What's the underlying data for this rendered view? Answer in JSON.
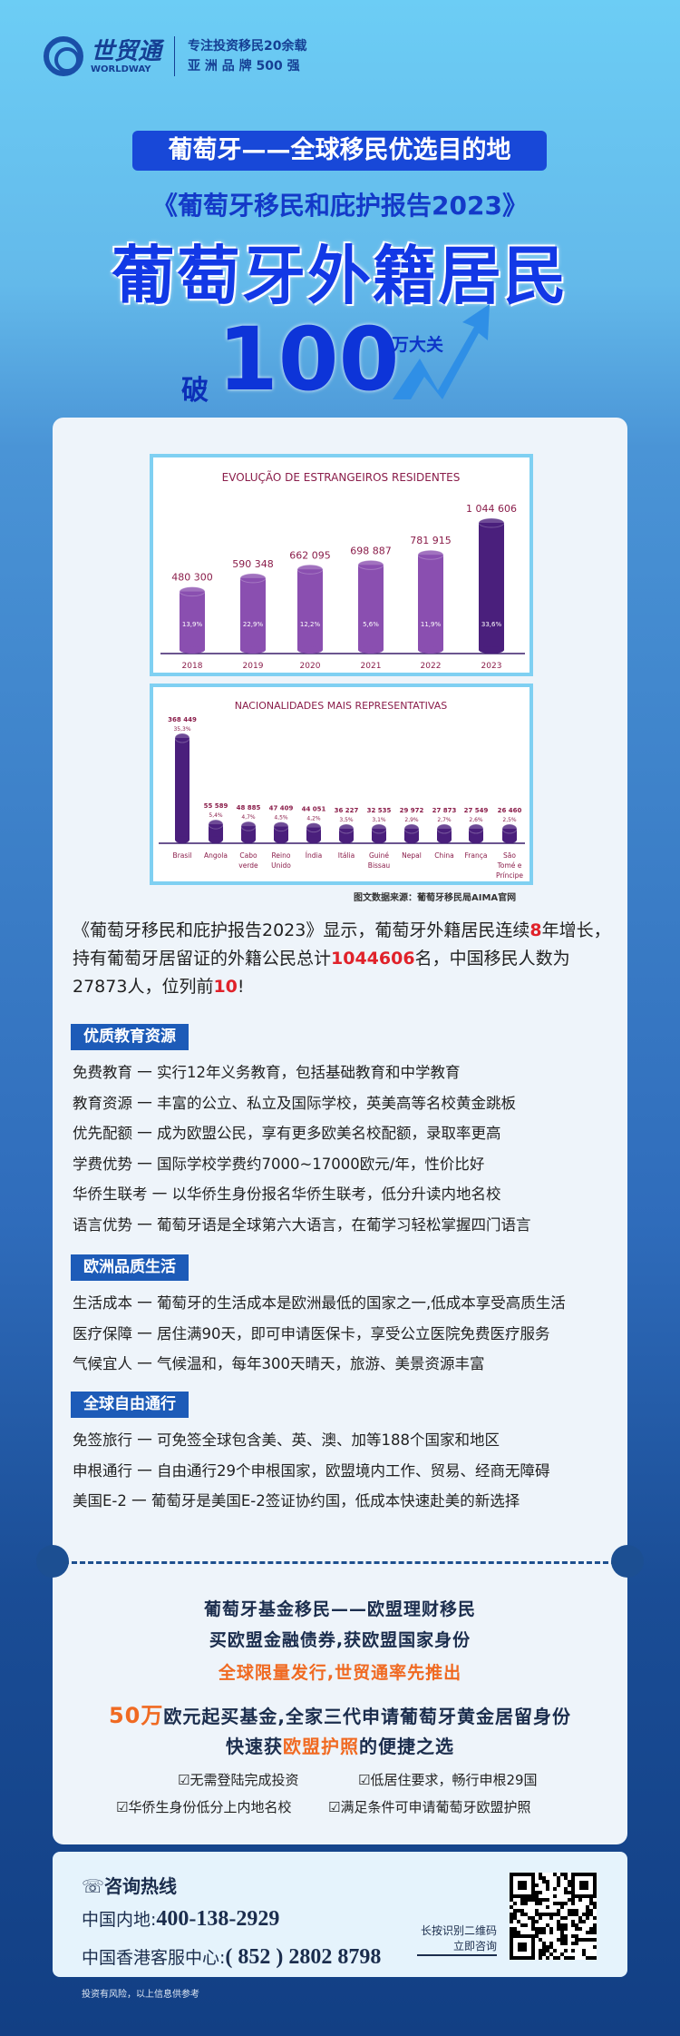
{
  "brand": {
    "name_cn": "世贸通",
    "name_en": "WORLDWAY",
    "registered": "®",
    "slogan_1": "专注投资移民20余载",
    "slogan_2": "亚 洲 品 牌 500 强"
  },
  "hero": {
    "pill": "葡萄牙——全球移民优选目的地",
    "report": "《葡萄牙移民和庇护报告2023》",
    "headline": "葡萄牙外籍居民",
    "po": "破",
    "number": "100",
    "unit": "万大关"
  },
  "chart_data": [
    {
      "type": "bar",
      "title": "Evolução de Estrangeiros Residentes",
      "categories": [
        "2018",
        "2019",
        "2020",
        "2021",
        "2022",
        "2023"
      ],
      "values": [
        480300,
        590348,
        662095,
        698887,
        781915,
        1044606
      ],
      "value_labels": [
        "480 300",
        "590 348",
        "662 095",
        "698 887",
        "781 915",
        "1 044 606"
      ],
      "growth_labels": [
        "13,9%",
        "22,9%",
        "12,2%",
        "5,6%",
        "11,9%",
        "33,6%"
      ],
      "colors": {
        "bar": "#8a4fb0",
        "highlight": "#4a1f7c",
        "text": "#8a1d4a"
      }
    },
    {
      "type": "bar",
      "title": "NACIONALIDADES MAIS REPRESENTATIVAS",
      "categories": [
        "Brasil",
        "Angola",
        "Cabo verde",
        "Reino Unido",
        "Índia",
        "Itália",
        "Guiné Bissau",
        "Nepal",
        "China",
        "França",
        "São Tomé e Príncipe"
      ],
      "values": [
        368449,
        55589,
        48885,
        47409,
        44051,
        36227,
        32535,
        29972,
        27873,
        27549,
        26460
      ],
      "value_labels": [
        "368 449",
        "55 589",
        "48 885",
        "47 409",
        "44 051",
        "36 227",
        "32 535",
        "29 972",
        "27 873",
        "27 549",
        "26 460"
      ],
      "share_labels": [
        "35,3%",
        "5,4%",
        "4,7%",
        "4,5%",
        "4,2%",
        "3,5%",
        "3,1%",
        "2,9%",
        "2,7%",
        "2,6%",
        "2,5%"
      ],
      "colors": {
        "bar": "#4a1f7c",
        "text": "#8a1d4a"
      }
    }
  ],
  "source": "图文数据来源：葡萄牙移民局AIMA官网",
  "intro": {
    "p1": "《葡萄牙移民和庇护报告2023》显示，葡萄牙外籍居民连续",
    "h1": "8",
    "p2": "年增长，持有葡萄牙居留证的外籍公民总计",
    "h2": "1044606",
    "p3": "名，中国移民人数为27873人，位列前",
    "h3": "10",
    "p4": "!"
  },
  "sections": [
    {
      "title": "优质教育资源",
      "items": [
        "免费教育 一 实行12年义务教育，包括基础教育和中学教育",
        "教育资源 一 丰富的公立、私立及国际学校，英美高等名校黄金跳板",
        "优先配额 一 成为欧盟公民，享有更多欧美名校配额，录取率更高",
        "学费优势 一 国际学校学费约7000~17000欧元/年，性价比好",
        "华侨生联考 一 以华侨生身份报名华侨生联考，低分升读内地名校",
        "语言优势 一 葡萄牙语是全球第六大语言，在葡学习轻松掌握四门语言"
      ]
    },
    {
      "title": "欧洲品质生活",
      "items": [
        "生活成本 一 葡萄牙的生活成本是欧洲最低的国家之一,低成本享受高质生活",
        "医疗保障 一 居住满90天，即可申请医保卡，享受公立医院免费医疗服务",
        "气候宜人 一 气候温和，每年300天晴天，旅游、美景资源丰富"
      ]
    },
    {
      "title": "全球自由通行",
      "items": [
        "免签旅行 一 可免签全球包含美、英、澳、加等188个国家和地区",
        "申根通行 一 自由通行29个申根国家，欧盟境内工作、贸易、经商无障碍",
        "美国E-2 一 葡萄牙是美国E-2签证协约国，低成本快速赴美的新选择"
      ]
    }
  ],
  "promo": {
    "l1": "葡萄牙基金移民——欧盟理财移民",
    "l2": "买欧盟金融债券,获欧盟国家身份",
    "l3": "全球限量发行,世贸通率先推出",
    "l4a": "50万",
    "l4b": "欧元起买基金,全家三代申请葡萄牙黄金居留身份",
    "l5a": "快速获",
    "l5b": "欧盟护照",
    "l5c": "的便捷之选",
    "checks": [
      "无需登陆完成投资",
      "低居住要求，畅行申根29国",
      "华侨生身份低分上内地名校",
      "满足条件可申请葡萄牙欧盟护照"
    ]
  },
  "contact": {
    "title": "咨询热线",
    "mainland_label": "中国内地:",
    "mainland": "400-138-2929",
    "hk_label": "中国香港客服中心:",
    "hk": "( 852 ) 2802 8798",
    "qr_hint_1": "长按识别二维码",
    "qr_hint_2": "立即咨询"
  },
  "disclaimer": "投资有风险，以上信息供参考"
}
